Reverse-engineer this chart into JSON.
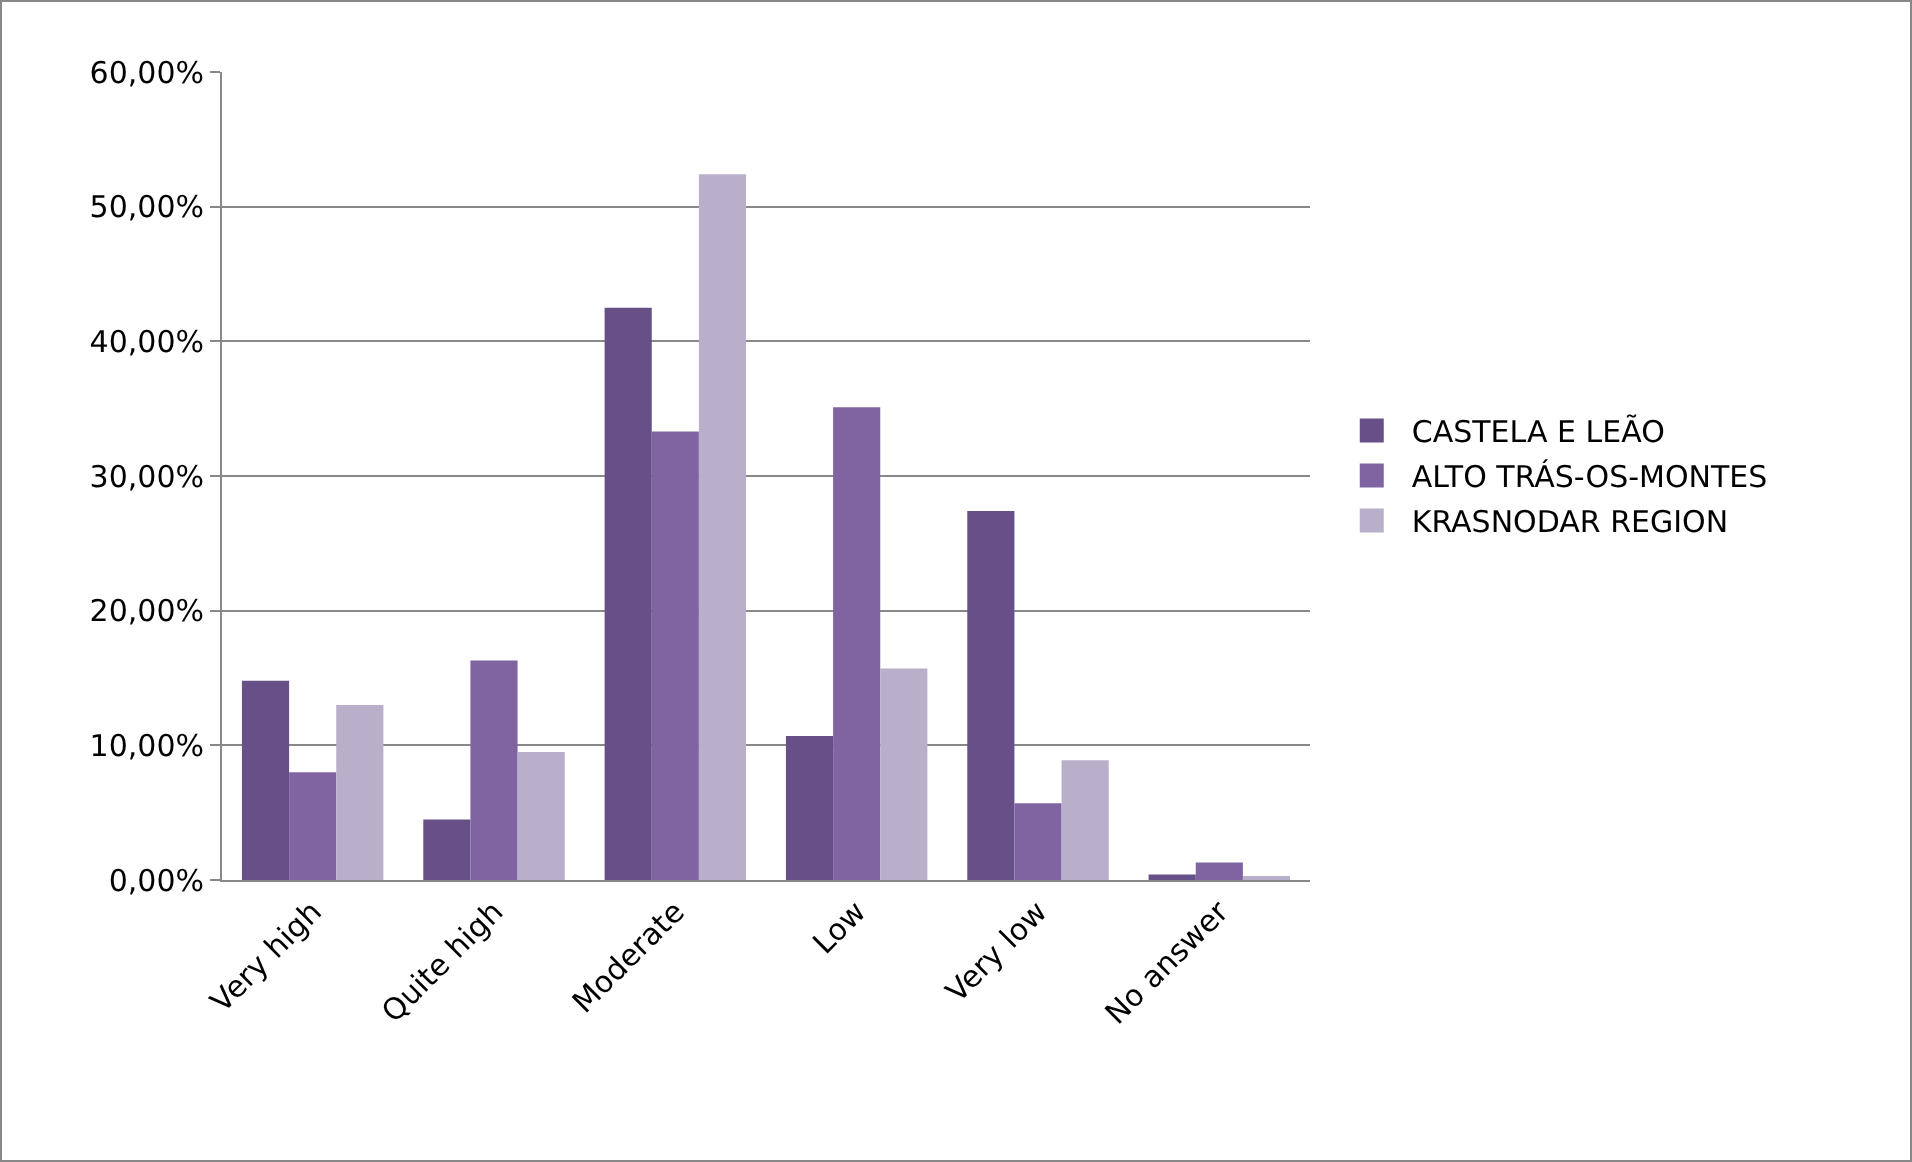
{
  "chart_data": {
    "type": "bar",
    "categories": [
      "Very high",
      "Quite high",
      "Moderate",
      "Low",
      "Very low",
      "No answer"
    ],
    "series": [
      {
        "name": "CASTELA E LEÃO",
        "color": "#674f87",
        "values": [
          14.8,
          4.5,
          42.5,
          10.7,
          27.4,
          0.4
        ]
      },
      {
        "name": "ALTO TRÁS-OS-MONTES",
        "color": "#8064a2",
        "values": [
          8.0,
          16.3,
          33.3,
          35.1,
          5.7,
          1.3
        ]
      },
      {
        "name": "KRASNODAR REGION",
        "color": "#b9afcb",
        "values": [
          13.0,
          9.5,
          52.4,
          15.7,
          8.9,
          0.3
        ]
      }
    ],
    "ylim": [
      0,
      60
    ],
    "yticks": [
      {
        "value": 0,
        "label": "0,00%"
      },
      {
        "value": 10,
        "label": "10,00%"
      },
      {
        "value": 20,
        "label": "20,00%"
      },
      {
        "value": 30,
        "label": "30,00%"
      },
      {
        "value": 40,
        "label": "40,00%"
      },
      {
        "value": 50,
        "label": "50,00%"
      },
      {
        "value": 60,
        "label": "60,00%"
      }
    ],
    "grid": "y",
    "legend": "right"
  }
}
